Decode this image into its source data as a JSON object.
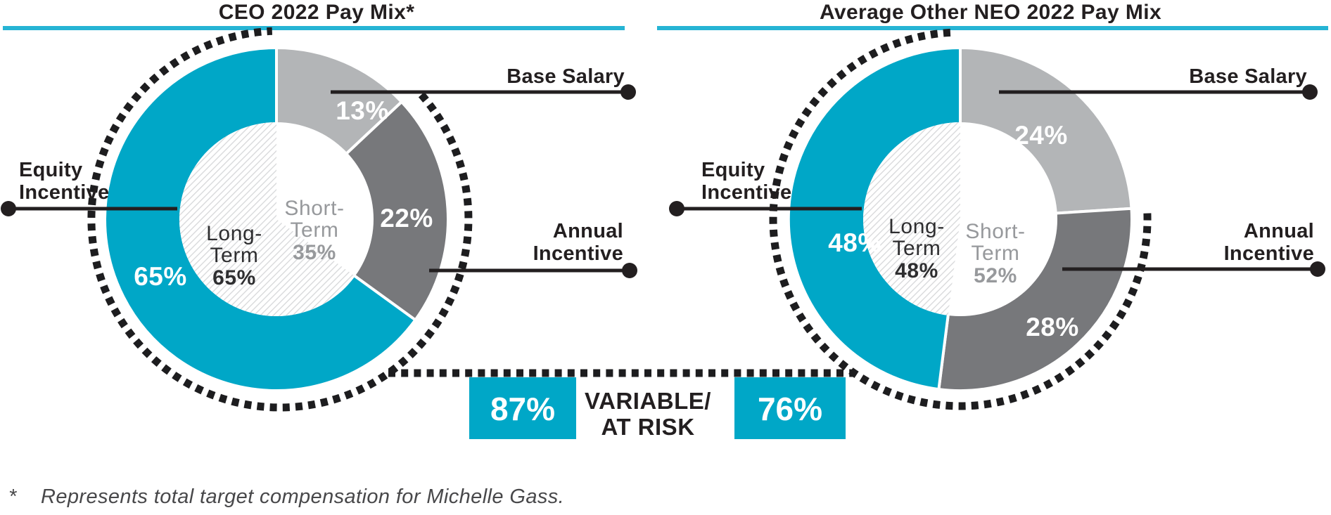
{
  "colors": {
    "cyan": "#00a7c7",
    "rule_cyan": "#26b4d4",
    "light_gray": "#b3b5b7",
    "dark_gray": "#77787b",
    "ink": "#231f20",
    "muted_gray": "#97999c",
    "hatch_gray": "#d6d7d9",
    "dotted_black": "#1d1d1f"
  },
  "chart_data": [
    {
      "type": "donut",
      "title": "CEO 2022 Pay Mix*",
      "outer_ring": [
        {
          "label": "Base Salary",
          "value": 13,
          "display": "13%",
          "color": "light_gray"
        },
        {
          "label": "Annual Incentive",
          "value": 22,
          "display": "22%",
          "color": "dark_gray"
        },
        {
          "label": "Equity Incentive",
          "value": 65,
          "display": "65%",
          "color": "cyan"
        }
      ],
      "inner_ring": [
        {
          "label": "Short-Term",
          "value": 35,
          "display": "35%",
          "style": "plain"
        },
        {
          "label": "Long-Term",
          "value": 65,
          "display": "65%",
          "style": "hatched"
        }
      ],
      "inner_labels": {
        "long": {
          "line1": "Long-",
          "line2": "Term",
          "value": "65%"
        },
        "short": {
          "line1": "Short-",
          "line2": "Term",
          "value": "35%"
        }
      },
      "at_risk": {
        "value": 87,
        "display": "87%"
      }
    },
    {
      "type": "donut",
      "title": "Average Other NEO 2022 Pay Mix",
      "outer_ring": [
        {
          "label": "Base Salary",
          "value": 24,
          "display": "24%",
          "color": "light_gray"
        },
        {
          "label": "Annual Incentive",
          "value": 28,
          "display": "28%",
          "color": "dark_gray"
        },
        {
          "label": "Equity Incentive",
          "value": 48,
          "display": "48%",
          "color": "cyan"
        }
      ],
      "inner_ring": [
        {
          "label": "Short-Term",
          "value": 52,
          "display": "52%",
          "style": "plain"
        },
        {
          "label": "Long-Term",
          "value": 48,
          "display": "48%",
          "style": "hatched"
        }
      ],
      "inner_labels": {
        "long": {
          "line1": "Long-",
          "line2": "Term",
          "value": "48%"
        },
        "short": {
          "line1": "Short-",
          "line2": "Term",
          "value": "52%"
        }
      },
      "at_risk": {
        "value": 76,
        "display": "76%"
      }
    }
  ],
  "callout_labels": {
    "base_salary": "Base Salary",
    "annual_incentive": {
      "line1": "Annual",
      "line2": "Incentive"
    },
    "equity_incentive": {
      "line1": "Equity",
      "line2": "Incentive"
    }
  },
  "risk_banner": {
    "line1": "VARIABLE/",
    "line2": "AT RISK"
  },
  "footnote": {
    "marker": "*",
    "text": "Represents total target compensation for Michelle Gass."
  }
}
